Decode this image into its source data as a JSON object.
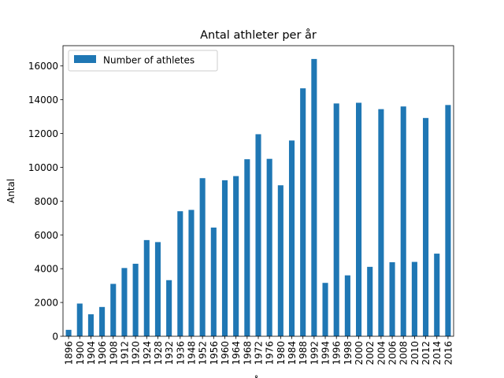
{
  "chart_data": {
    "type": "bar",
    "title": "Antal athleter per år",
    "xlabel": "År",
    "ylabel": "Antal",
    "ylim": [
      0,
      17200
    ],
    "yticks": [
      0,
      2000,
      4000,
      6000,
      8000,
      10000,
      12000,
      14000,
      16000
    ],
    "grid": false,
    "legend_position": "top-left",
    "bar_color": "#1f77b4",
    "categories": [
      "1896",
      "1900",
      "1904",
      "1906",
      "1908",
      "1912",
      "1920",
      "1924",
      "1928",
      "1932",
      "1936",
      "1948",
      "1952",
      "1956",
      "1960",
      "1964",
      "1968",
      "1972",
      "1976",
      "1980",
      "1984",
      "1988",
      "1992",
      "1994",
      "1996",
      "1998",
      "2000",
      "2002",
      "2004",
      "2006",
      "2008",
      "2010",
      "2012",
      "2014",
      "2016"
    ],
    "series": [
      {
        "name": "Number of athletes",
        "values": [
          380,
          1936,
          1301,
          1733,
          3101,
          4040,
          4292,
          5693,
          5574,
          3321,
          7401,
          7480,
          9358,
          6434,
          9235,
          9480,
          10479,
          11959,
          10502,
          8937,
          11588,
          14676,
          16413,
          3160,
          13780,
          3605,
          13821,
          4109,
          13443,
          4382,
          13602,
          4402,
          12920,
          4891,
          13688
        ]
      }
    ]
  }
}
